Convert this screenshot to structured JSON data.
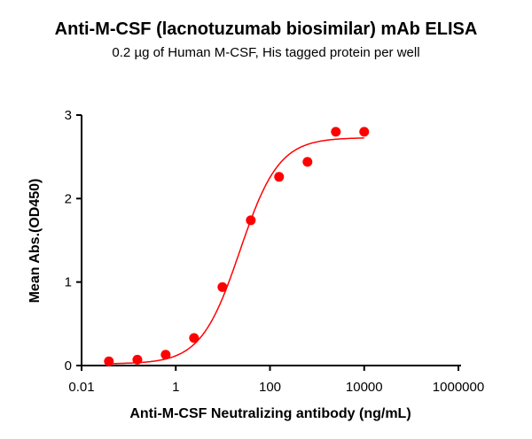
{
  "chart_data": {
    "type": "scatter",
    "title": "Anti-M-CSF (lacnotuzumab biosimilar) mAb ELISA",
    "subtitle": "0.2 µg of Human M-CSF, His tagged protein per well",
    "xlabel": "Anti-M-CSF Neutralizing antibody (ng/mL)",
    "ylabel": "Mean Abs.(OD450)",
    "xscale": "log",
    "xlim": [
      0.01,
      1000000
    ],
    "ylim": [
      0,
      3
    ],
    "xticks": [
      "0.01",
      "1",
      "100",
      "10000",
      "1000000"
    ],
    "yticks": [
      "0",
      "1",
      "2",
      "3"
    ],
    "grid": false,
    "color": "#ff0000",
    "fit": "sigmoidal curve",
    "x": [
      0.038,
      0.153,
      0.61,
      2.44,
      9.77,
      39.1,
      156,
      625,
      2500,
      10000
    ],
    "y": [
      0.05,
      0.07,
      0.13,
      0.33,
      0.94,
      1.74,
      2.26,
      2.44,
      2.8,
      2.8
    ]
  }
}
